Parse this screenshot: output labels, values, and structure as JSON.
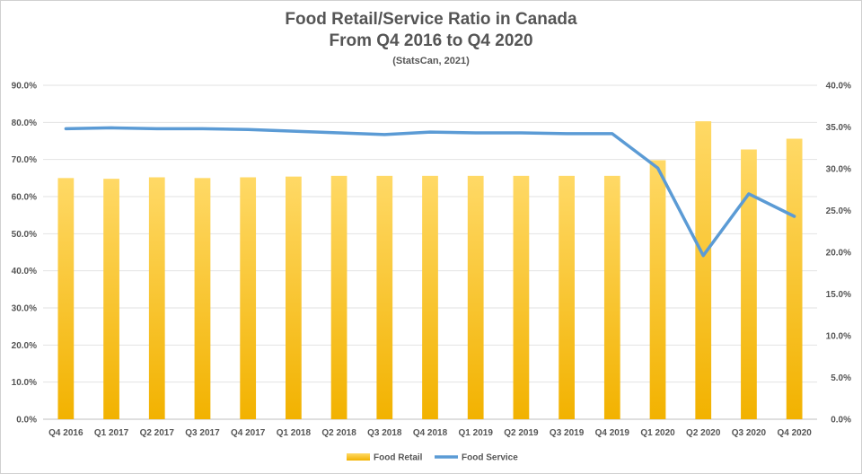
{
  "chart_data": {
    "type": "bar",
    "title_line1": "Food Retail/Service Ratio in Canada",
    "title_line2": "From Q4 2016 to Q4 2020",
    "subtitle": "(StatsCan, 2021)",
    "categories": [
      "Q4 2016",
      "Q1 2017",
      "Q2 2017",
      "Q3 2017",
      "Q4 2017",
      "Q1 2018",
      "Q2 2018",
      "Q3 2018",
      "Q4 2018",
      "Q1 2019",
      "Q2 2019",
      "Q3 2019",
      "Q4 2019",
      "Q1 2020",
      "Q2 2020",
      "Q3 2020",
      "Q4 2020"
    ],
    "series": [
      {
        "name": "Food Retail",
        "type": "bar",
        "axis": "left",
        "color": "#FFC000",
        "values": [
          65.0,
          64.8,
          65.2,
          65.0,
          65.2,
          65.4,
          65.6,
          65.6,
          65.6,
          65.6,
          65.6,
          65.6,
          65.6,
          69.8,
          80.3,
          72.7,
          75.6
        ]
      },
      {
        "name": "Food Service",
        "type": "line",
        "axis": "right",
        "color": "#5B9BD5",
        "values": [
          34.8,
          34.9,
          34.8,
          34.8,
          34.7,
          34.5,
          34.3,
          34.1,
          34.4,
          34.3,
          34.3,
          34.2,
          34.2,
          30.1,
          19.6,
          27.0,
          24.3
        ]
      }
    ],
    "y_left": {
      "min": 0,
      "max": 90,
      "ticks": [
        "0.0%",
        "10.0%",
        "20.0%",
        "30.0%",
        "40.0%",
        "50.0%",
        "60.0%",
        "70.0%",
        "80.0%",
        "90.0%"
      ]
    },
    "y_right": {
      "min": 0,
      "max": 40,
      "ticks": [
        "0.0%",
        "5.0%",
        "10.0%",
        "15.0%",
        "20.0%",
        "25.0%",
        "30.0%",
        "35.0%",
        "40.0%"
      ]
    },
    "grid": true,
    "legend": "bottom-center"
  }
}
